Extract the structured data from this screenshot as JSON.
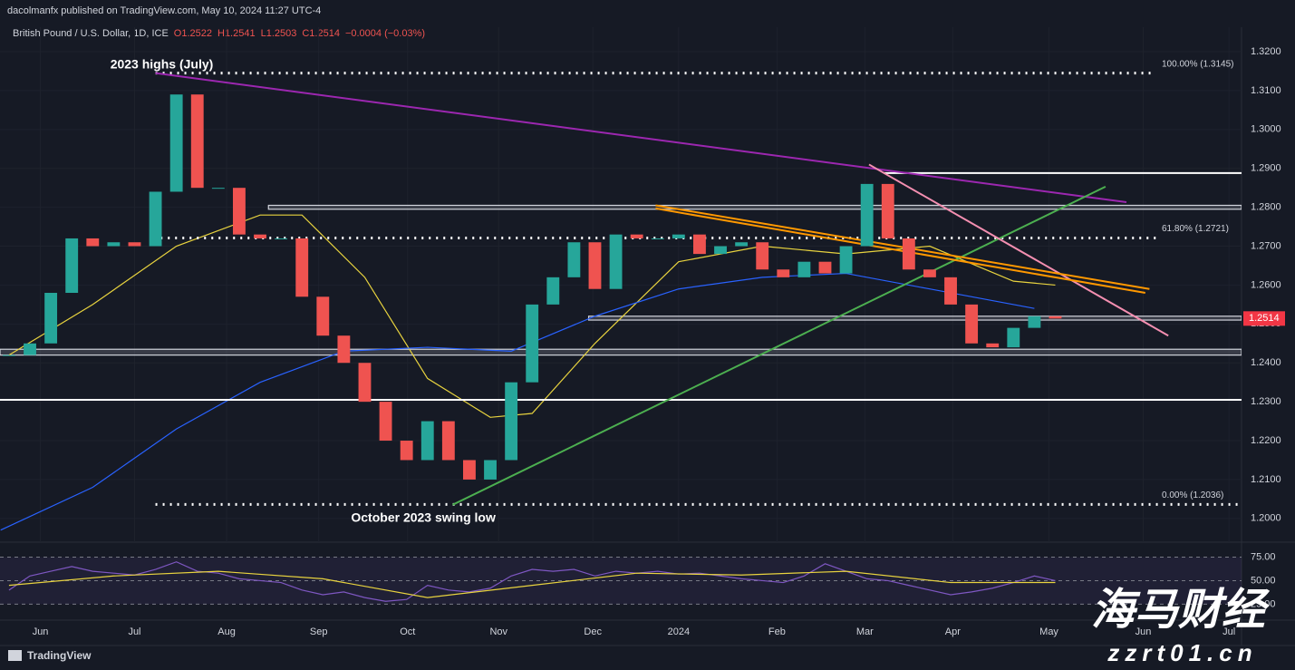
{
  "chart_data": {
    "type": "candlestick",
    "header": "dacolmanfx published on TradingView.com, May 10, 2024 11:27 UTC-4",
    "symbol": "British Pound / U.S. Dollar, 1D, ICE",
    "ohlc": [
      "O1.2522",
      "H1.2541",
      "L1.2503",
      "C1.2514",
      "−0.0004 (−0.03%)"
    ],
    "up_color": "#26a69a",
    "down_color": "#ef5350",
    "close": [
      1.242,
      1.245,
      1.258,
      1.272,
      1.27,
      1.271,
      1.27,
      1.284,
      1.309,
      1.285,
      1.285,
      1.273,
      1.272,
      1.272,
      1.257,
      1.247,
      1.24,
      1.23,
      1.22,
      1.215,
      1.225,
      1.215,
      1.21,
      1.215,
      1.235,
      1.255,
      1.262,
      1.271,
      1.259,
      1.273,
      1.272,
      1.272,
      1.273,
      1.268,
      1.27,
      1.271,
      1.264,
      1.262,
      1.266,
      1.263,
      1.27,
      1.286,
      1.272,
      1.264,
      1.262,
      1.255,
      1.245,
      1.244,
      1.249,
      1.252,
      1.2514
    ],
    "xlim": [
      -0.43,
      58.9
    ],
    "xticks": [
      {
        "value": 1.5,
        "label": "Jun"
      },
      {
        "value": 6.0,
        "label": "Jul"
      },
      {
        "value": 10.4,
        "label": "Aug"
      },
      {
        "value": 14.8,
        "label": "Sep"
      },
      {
        "value": 19.05,
        "label": "Oct"
      },
      {
        "value": 23.4,
        "label": "Nov"
      },
      {
        "value": 27.9,
        "label": "Dec"
      },
      {
        "value": 32.0,
        "label": "2024"
      },
      {
        "value": 36.7,
        "label": "Feb"
      },
      {
        "value": 40.9,
        "label": "Mar"
      },
      {
        "value": 45.1,
        "label": "Apr"
      },
      {
        "value": 49.7,
        "label": "May"
      },
      {
        "value": 54.2,
        "label": "Jun"
      },
      {
        "value": 58.3,
        "label": "Jul"
      }
    ],
    "ylim": [
      1.1939,
      1.3263
    ],
    "yticks": [
      {
        "value": 1.2,
        "label": "1.2000"
      },
      {
        "value": 1.21,
        "label": "1.2100"
      },
      {
        "value": 1.22,
        "label": "1.2200"
      },
      {
        "value": 1.23,
        "label": "1.2300"
      },
      {
        "value": 1.24,
        "label": "1.2400"
      },
      {
        "value": 1.25,
        "label": "1.2500"
      },
      {
        "value": 1.26,
        "label": "1.2600"
      },
      {
        "value": 1.27,
        "label": "1.2700"
      },
      {
        "value": 1.28,
        "label": "1.2800"
      },
      {
        "value": 1.29,
        "label": "1.2900"
      },
      {
        "value": 1.3,
        "label": "1.3000"
      },
      {
        "value": 1.31,
        "label": "1.3100"
      },
      {
        "value": 1.32,
        "label": "1.3200"
      }
    ],
    "last_price": {
      "value": 1.2514,
      "label": "1.2514",
      "color": "#f23645"
    },
    "moving_averages": [
      {
        "color": "#e8d33f",
        "x": [
          0,
          4,
          8,
          12,
          14,
          17,
          20,
          23,
          25,
          28,
          32,
          36,
          40,
          44,
          48,
          50
        ],
        "values": [
          1.242,
          1.255,
          1.27,
          1.278,
          1.278,
          1.262,
          1.236,
          1.226,
          1.227,
          1.245,
          1.266,
          1.27,
          1.268,
          1.27,
          1.261,
          1.26
        ]
      },
      {
        "color": "#2962ff",
        "x": [
          -0.4,
          4,
          8,
          12,
          16,
          20,
          24,
          28,
          32,
          36,
          40,
          44,
          49
        ],
        "values": [
          1.197,
          1.208,
          1.223,
          1.235,
          1.243,
          1.244,
          1.243,
          1.252,
          1.259,
          1.262,
          1.263,
          1.259,
          1.254
        ]
      }
    ],
    "levels": [
      {
        "value": 1.3145,
        "label": "100.00% (1.3145)",
        "style": "dotted",
        "x": [
          7.0,
          54.8
        ]
      },
      {
        "value": 1.2721,
        "label": "61.80% (1.2721)",
        "style": "dotted",
        "x": [
          6.9,
          54.8
        ]
      },
      {
        "value": 1.2036,
        "label": "0.00% (1.2036)",
        "style": "dotted",
        "x": [
          7.0,
          58.9
        ]
      },
      {
        "value": 1.2888,
        "style": "solid",
        "x": [
          41.8,
          58.9
        ]
      },
      {
        "value": 1.2305,
        "style": "solid",
        "x": [
          -0.43,
          58.9
        ]
      }
    ],
    "zones": [
      {
        "y": [
          1.2795,
          1.2805
        ],
        "x": [
          12.4,
          58.9
        ]
      },
      {
        "y": [
          1.251,
          1.252
        ],
        "x": [
          27.7,
          58.9
        ]
      },
      {
        "y": [
          1.242,
          1.2435
        ],
        "x": [
          -0.43,
          58.9
        ]
      }
    ],
    "trendlines": [
      {
        "color": "#9c27b0",
        "x": [
          7.0,
          53.4
        ],
        "y": [
          1.3145,
          1.2813
        ]
      },
      {
        "color": "#4caf50",
        "x": [
          21.2,
          52.4
        ],
        "y": [
          1.2035,
          1.2853
        ]
      },
      {
        "color": "#f48fb1",
        "x": [
          41.1,
          55.4
        ],
        "y": [
          1.291,
          1.247
        ]
      },
      {
        "color": "#ff9800",
        "x": [
          30.9,
          54.5
        ],
        "y": [
          1.2805,
          1.259
        ]
      },
      {
        "color": "#ff9800",
        "x": [
          30.9,
          54.3
        ],
        "y": [
          1.2797,
          1.258
        ]
      }
    ],
    "annotations": [
      {
        "text": "2023 highs (July)",
        "x": 7.3,
        "y": 1.3165
      },
      {
        "text": "October 2023 swing low",
        "x": 19.8,
        "y": 1.2
      }
    ],
    "rsi": {
      "ylim": [
        8,
        90
      ],
      "yticks": [
        {
          "value": 75,
          "label": "75.00"
        },
        {
          "value": 50,
          "label": "50.00"
        },
        {
          "value": 25,
          "label": "25.00"
        }
      ],
      "color": "#7e57c2",
      "values": [
        40,
        55,
        60,
        65,
        60,
        58,
        56,
        62,
        70,
        60,
        58,
        52,
        50,
        48,
        40,
        35,
        38,
        32,
        28,
        30,
        45,
        40,
        38,
        42,
        55,
        62,
        60,
        62,
        55,
        60,
        58,
        60,
        57,
        58,
        55,
        52,
        50,
        48,
        55,
        68,
        60,
        52,
        50,
        45,
        40,
        35,
        38,
        42,
        48,
        55,
        50
      ],
      "ma_color": "#e8d33f",
      "ma_x": [
        0,
        5,
        10,
        15,
        20,
        25,
        30,
        35,
        40,
        45,
        50
      ],
      "ma_values": [
        45,
        55,
        60,
        52,
        32,
        45,
        58,
        56,
        60,
        48,
        48
      ]
    },
    "logo": "TradingView",
    "watermark": [
      "海马财经",
      "zzrt01.cn"
    ]
  }
}
